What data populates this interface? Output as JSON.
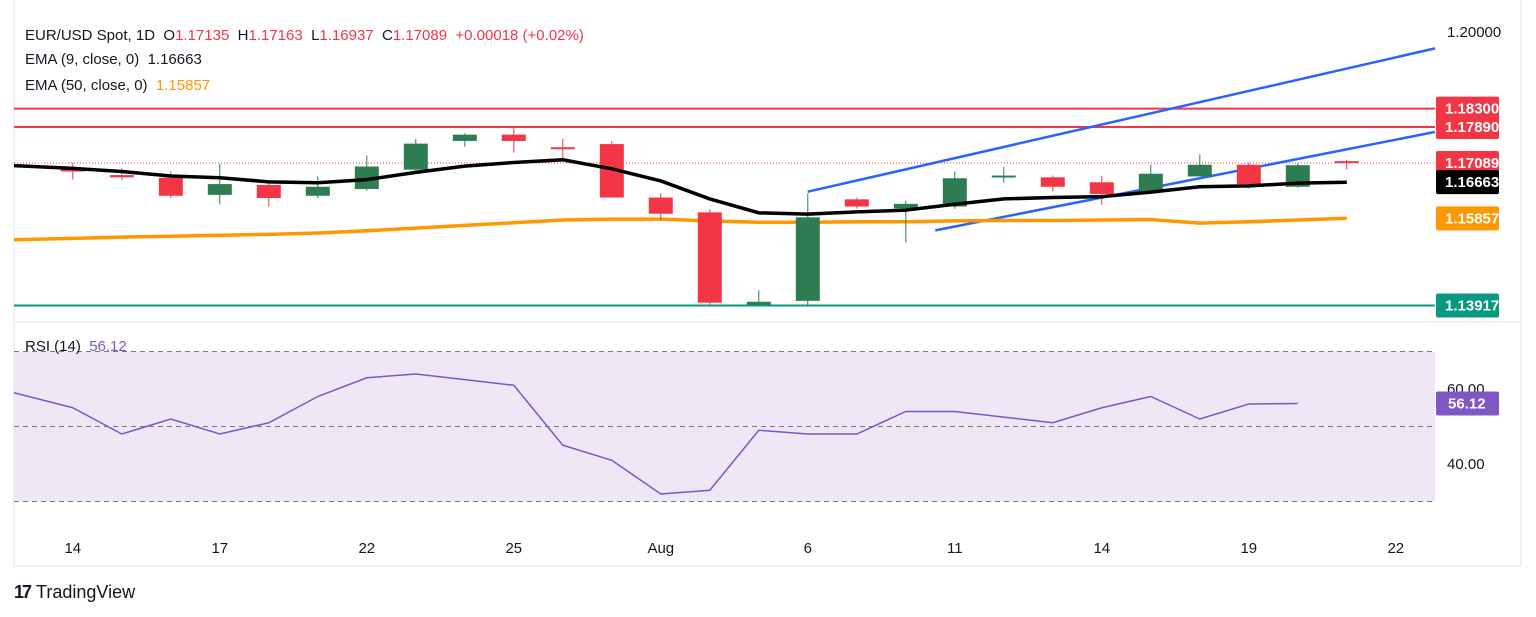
{
  "legend": {
    "symbol": "EUR/USD Spot, 1D",
    "o_label": "O",
    "o": "1.17135",
    "h_label": "H",
    "h": "1.17163",
    "l_label": "L",
    "l": "1.16937",
    "c_label": "C",
    "c": "1.17089",
    "change": "+0.00018 (+0.02%)",
    "ema9_label": "EMA (9, close, 0)",
    "ema9": "1.16663",
    "ema50_label": "EMA (50, close, 0)",
    "ema50": "1.15857",
    "rsi_label": "RSI (14)",
    "rsi": "56.12"
  },
  "brand": {
    "mark": "17",
    "name": "TradingView"
  },
  "colors": {
    "up": "#2e7d52",
    "down": "#f23645",
    "ema9": "#000000",
    "ema50": "#ff9800",
    "channel": "#2962ff",
    "resistance": "#f23645",
    "support": "#089981",
    "rsi": "#7e57c2",
    "rsi_band": "#ede7f6",
    "price_dotted": "#f23645"
  },
  "chart_data": {
    "type": "candlestick",
    "x_ticks": [
      {
        "label": "14",
        "x": 0
      },
      {
        "label": "17",
        "x": 3
      },
      {
        "label": "22",
        "x": 6
      },
      {
        "label": "25",
        "x": 9
      },
      {
        "label": "Aug",
        "x": 12
      },
      {
        "label": "6",
        "x": 15
      },
      {
        "label": "11",
        "x": 18
      },
      {
        "label": "14",
        "x": 21
      },
      {
        "label": "19",
        "x": 24
      },
      {
        "label": "22",
        "x": 27
      }
    ],
    "x_range": [
      -1.2,
      27.8
    ],
    "price_range": [
      1.1355,
      1.2045
    ],
    "candles": [
      {
        "o": 1.1695,
        "h": 1.171,
        "l": 1.1672,
        "c": 1.169
      },
      {
        "o": 1.1682,
        "h": 1.1697,
        "l": 1.1671,
        "c": 1.1677
      },
      {
        "o": 1.1676,
        "h": 1.169,
        "l": 1.1631,
        "c": 1.1636
      },
      {
        "o": 1.1638,
        "h": 1.1707,
        "l": 1.1617,
        "c": 1.1662
      },
      {
        "o": 1.166,
        "h": 1.1663,
        "l": 1.1611,
        "c": 1.1631
      },
      {
        "o": 1.1636,
        "h": 1.1679,
        "l": 1.1631,
        "c": 1.1656
      },
      {
        "o": 1.1651,
        "h": 1.1726,
        "l": 1.1647,
        "c": 1.1701
      },
      {
        "o": 1.1694,
        "h": 1.1762,
        "l": 1.1688,
        "c": 1.1752
      },
      {
        "o": 1.1758,
        "h": 1.1775,
        "l": 1.1745,
        "c": 1.1772
      },
      {
        "o": 1.1772,
        "h": 1.1789,
        "l": 1.1732,
        "c": 1.1758
      },
      {
        "o": 1.1744,
        "h": 1.1763,
        "l": 1.1713,
        "c": 1.1742
      },
      {
        "o": 1.1751,
        "h": 1.1758,
        "l": 1.1632,
        "c": 1.1632
      },
      {
        "o": 1.1632,
        "h": 1.1642,
        "l": 1.1581,
        "c": 1.1596
      },
      {
        "o": 1.1599,
        "h": 1.1606,
        "l": 1.1391,
        "c": 1.1398
      },
      {
        "o": 1.1393,
        "h": 1.1426,
        "l": 1.1391,
        "c": 1.14
      },
      {
        "o": 1.1402,
        "h": 1.1641,
        "l": 1.1391,
        "c": 1.1588
      },
      {
        "o": 1.1628,
        "h": 1.1632,
        "l": 1.1607,
        "c": 1.1612
      },
      {
        "o": 1.1608,
        "h": 1.1625,
        "l": 1.1532,
        "c": 1.1618
      },
      {
        "o": 1.1612,
        "h": 1.169,
        "l": 1.1607,
        "c": 1.1675
      },
      {
        "o": 1.1679,
        "h": 1.17,
        "l": 1.1665,
        "c": 1.1681
      },
      {
        "o": 1.1677,
        "h": 1.1681,
        "l": 1.1646,
        "c": 1.1656
      },
      {
        "o": 1.1666,
        "h": 1.168,
        "l": 1.1616,
        "c": 1.164
      },
      {
        "o": 1.1645,
        "h": 1.1705,
        "l": 1.164,
        "c": 1.1685
      },
      {
        "o": 1.1679,
        "h": 1.1728,
        "l": 1.1681,
        "c": 1.1705
      },
      {
        "o": 1.1705,
        "h": 1.171,
        "l": 1.1652,
        "c": 1.1662
      },
      {
        "o": 1.1656,
        "h": 1.1708,
        "l": 1.1654,
        "c": 1.1704
      },
      {
        "o": 1.1713,
        "h": 1.1716,
        "l": 1.1694,
        "c": 1.1709
      }
    ],
    "ema9": [
      1.1697,
      1.169,
      1.168,
      1.1676,
      1.1667,
      1.1665,
      1.1672,
      1.1688,
      1.1702,
      1.171,
      1.1716,
      1.1696,
      1.1669,
      1.1629,
      1.1598,
      1.1595,
      1.16,
      1.1604,
      1.1617,
      1.1629,
      1.1632,
      1.1634,
      1.1644,
      1.1656,
      1.1658,
      1.1664,
      1.1666
    ],
    "ema50": [
      1.1541,
      1.1544,
      1.1546,
      1.1548,
      1.155,
      1.1553,
      1.1558,
      1.1564,
      1.157,
      1.1576,
      1.1582,
      1.1584,
      1.1584,
      1.158,
      1.1577,
      1.1577,
      1.1578,
      1.1578,
      1.158,
      1.1581,
      1.1581,
      1.1582,
      1.1583,
      1.1575,
      1.1578,
      1.1582,
      1.1586
    ],
    "ema50_start": 1.1538,
    "ema9_start": 1.1703,
    "channel_upper": {
      "x1": 15.0,
      "y1": 1.1645,
      "x2": 27.8,
      "y2": 1.1964
    },
    "channel_lower": {
      "x1": 17.6,
      "y1": 1.1559,
      "x2": 27.8,
      "y2": 1.1778
    },
    "horizontal_lines": [
      {
        "value": 1.183,
        "label": "1.18300",
        "kind": "resistance"
      },
      {
        "value": 1.1789,
        "label": "1.17890",
        "kind": "resistance"
      },
      {
        "value": 1.13917,
        "label": "1.13917",
        "kind": "support"
      }
    ],
    "price_labels": [
      {
        "value": 1.2,
        "label": "1.20000",
        "style": "plain"
      },
      {
        "value": 1.183,
        "label": "1.18300",
        "style": "resistance"
      },
      {
        "value": 1.1789,
        "label": "1.17890",
        "style": "resistance"
      },
      {
        "value": 1.17089,
        "label": "1.17089",
        "style": "current"
      },
      {
        "value": 1.16663,
        "label": "1.16663",
        "style": "ema9"
      },
      {
        "value": 1.15857,
        "label": "1.15857",
        "style": "ema50"
      },
      {
        "value": 1.13917,
        "label": "1.13917",
        "style": "support"
      }
    ],
    "current_price": 1.17089,
    "rsi": {
      "range": [
        28,
        72
      ],
      "upper": 70,
      "middle": 50,
      "lower": 30,
      "values": [
        59,
        55,
        48,
        52,
        48,
        51,
        58,
        63,
        64,
        61,
        45,
        41,
        32,
        33,
        49,
        48,
        48,
        54,
        54,
        51,
        55,
        58,
        52,
        56,
        56.12
      ],
      "value_x": [
        -1.2,
        0,
        1,
        2,
        3,
        4,
        5,
        6,
        7,
        9,
        10,
        11,
        12,
        13,
        14,
        15,
        16,
        17,
        18,
        20,
        21,
        22,
        23,
        24,
        25
      ],
      "ticks": [
        {
          "value": 60,
          "label": "60.00"
        },
        {
          "value": 40,
          "label": "40.00"
        }
      ],
      "current_label": "56.12"
    }
  }
}
